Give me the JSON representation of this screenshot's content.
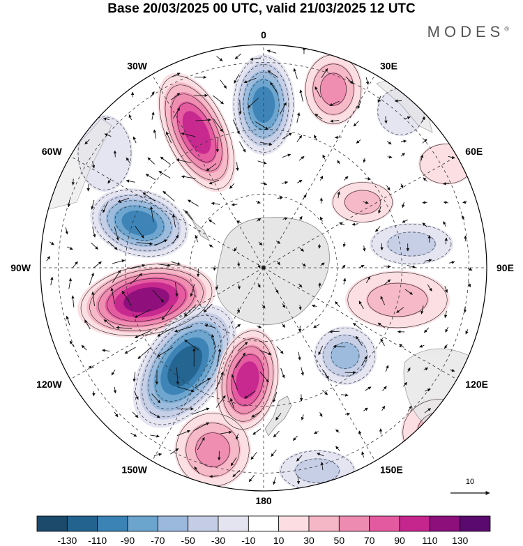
{
  "title": "Base 20/03/2025 00 UTC, valid 21/03/2025 12 UTC",
  "logo": "MODES",
  "logo_mark": "®",
  "map": {
    "projection": "south polar stereographic",
    "longitude_labels": [
      {
        "text": "0",
        "lon": 0
      },
      {
        "text": "30E",
        "lon": 30
      },
      {
        "text": "60E",
        "lon": 60
      },
      {
        "text": "90E",
        "lon": 90
      },
      {
        "text": "120E",
        "lon": 120
      },
      {
        "text": "150E",
        "lon": 150
      },
      {
        "text": "180",
        "lon": 180
      },
      {
        "text": "150W",
        "lon": -150
      },
      {
        "text": "120W",
        "lon": -120
      },
      {
        "text": "90W",
        "lon": -90
      },
      {
        "text": "60W",
        "lon": -60
      },
      {
        "text": "30W",
        "lon": -30
      }
    ],
    "reference_vector": "10"
  },
  "colorbar": {
    "labels": [
      "-130",
      "-110",
      "-90",
      "-70",
      "-50",
      "-30",
      "-10",
      "10",
      "30",
      "50",
      "70",
      "90",
      "110",
      "130"
    ],
    "colors": [
      "#1b4a6b",
      "#23638f",
      "#3b82b5",
      "#6ba4cd",
      "#9ab9dc",
      "#c5cde6",
      "#e4e4f1",
      "#ffffff",
      "#fbdde2",
      "#f5b6c6",
      "#ee8bb0",
      "#e45aa0",
      "#c5268e",
      "#8c0f7c",
      "#5a0a6e"
    ]
  },
  "colors": {
    "land": "#e6e6e6",
    "coast": "#888888",
    "grid": "#333333",
    "arrow": "#111111"
  }
}
